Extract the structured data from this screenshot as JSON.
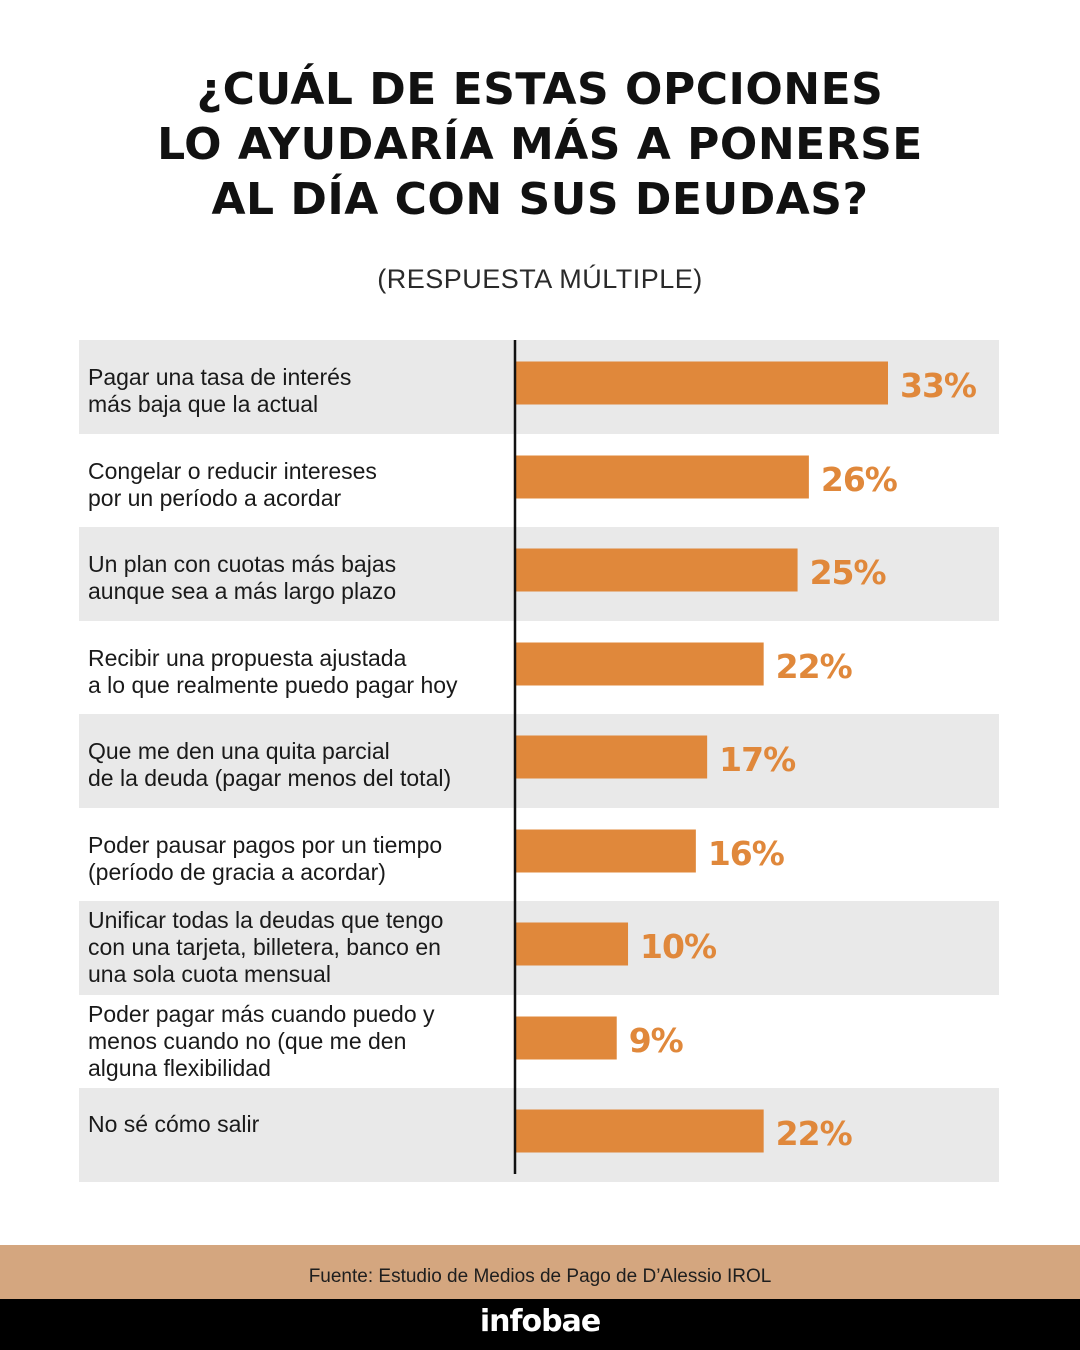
{
  "header": {
    "title_lines": [
      "¿CUÁL DE ESTAS OPCIONES",
      "LO AYUDARÍA MÁS A PONERSE",
      "AL DÍA CON SUS DEUDAS?"
    ],
    "subtitle": "(RESPUESTA MÚLTIPLE)"
  },
  "colors": {
    "bar": "#e0883b",
    "label": "#e0883b",
    "row_shade": "#e9e9e9",
    "axis": "#111111",
    "source_band": "#d4a67f",
    "brand_band": "#000000"
  },
  "chart_data": {
    "type": "bar",
    "orientation": "horizontal",
    "categories": [
      [
        "Pagar  una tasa de interés",
        "más baja que la actual"
      ],
      [
        "Congelar o reducir intereses",
        "por un período a acordar"
      ],
      [
        "Un plan con cuotas más bajas",
        "aunque sea a más largo plazo"
      ],
      [
        "Recibir una propuesta ajustada",
        "a lo que realmente puedo pagar hoy"
      ],
      [
        "Que me den una quita parcial",
        "de la deuda (pagar menos del total)"
      ],
      [
        "Poder pausar pagos por un tiempo",
        "(período de gracia a acordar)"
      ],
      [
        "Unificar todas la deudas que tengo",
        "con una tarjeta, billetera, banco en",
        "una sola cuota mensual"
      ],
      [
        "Poder pagar más cuando puedo y",
        "menos cuando no (que me den",
        "alguna flexibilidad"
      ],
      [
        "No sé cómo salir"
      ]
    ],
    "values": [
      33,
      26,
      25,
      22,
      17,
      16,
      10,
      9,
      22
    ],
    "value_labels": [
      "33%",
      "26%",
      "25%",
      "22%",
      "17%",
      "16%",
      "10%",
      "9%",
      "22%"
    ],
    "unit": "%",
    "xlim": [
      0,
      33
    ],
    "grid": false,
    "legend": "none"
  },
  "footer": {
    "source": "Fuente: Estudio de Medios de Pago de D’Alessio IROL",
    "brand": "infobae"
  }
}
